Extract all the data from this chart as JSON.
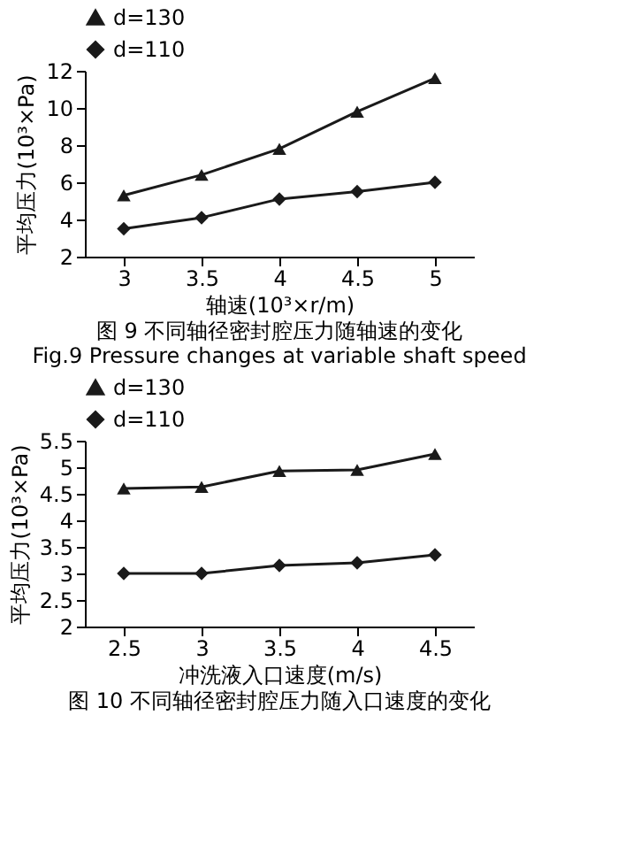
{
  "chart_data": [
    {
      "type": "line",
      "categories": [
        "3",
        "3.5",
        "4",
        "4.5",
        "5"
      ],
      "xlabel": "轴速(10³×r/m)",
      "ylabel": "平均压力(10³×Pa)",
      "series": [
        {
          "name": "d=130",
          "color": "#1a1a1a",
          "marker": "triangle",
          "values": [
            5.3,
            6.4,
            7.8,
            9.8,
            11.6
          ]
        },
        {
          "name": "d=110",
          "color": "#1a1a1a",
          "marker": "diamond",
          "values": [
            3.5,
            4.1,
            5.1,
            5.5,
            6.0
          ]
        }
      ],
      "ylim": [
        2,
        12
      ],
      "yticks": [
        2,
        4,
        6,
        8,
        10,
        12
      ],
      "grid": false,
      "legend": "top left",
      "line_style": "solid",
      "annotations": [
        "图 9 不同轴径密封腔压力随轴速的变化",
        "Fig.9 Pressure changes at variable shaft speed"
      ]
    },
    {
      "type": "line",
      "categories": [
        "2.5",
        "3",
        "3.5",
        "4",
        "4.5"
      ],
      "xlabel": "冲洗液入口速度(m/s)",
      "ylabel": "平均压力(10³×Pa)",
      "series": [
        {
          "name": "d=130",
          "color": "#1a1a1a",
          "marker": "triangle",
          "values": [
            4.6,
            4.63,
            4.93,
            4.95,
            5.25
          ]
        },
        {
          "name": "d=110",
          "color": "#1a1a1a",
          "marker": "diamond",
          "values": [
            3.0,
            3.0,
            3.15,
            3.2,
            3.35
          ]
        }
      ],
      "ylim": [
        2,
        5.5
      ],
      "yticks": [
        2,
        2.5,
        3,
        3.5,
        4,
        4.5,
        5,
        5.5
      ],
      "grid": false,
      "legend": "top left",
      "line_style": "solid",
      "annotations": [
        "图 10 不同轴径密封腔压力随入口速度的变化"
      ]
    }
  ]
}
